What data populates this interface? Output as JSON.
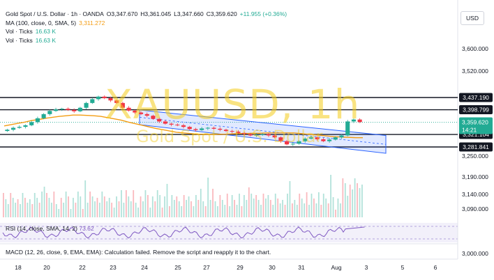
{
  "header": {
    "symbol_line": "Gold Spot / U.S. Dollar · 1h · OANDA",
    "open": "O3,347.670",
    "high": "H3,361.045",
    "low": "L3,347.660",
    "close": "C3,359.620",
    "change": "+11.955 (+0.36%)",
    "ma_label": "MA (100, close, 0, SMA, 5)",
    "ma_value": "3,311.272",
    "vol_label_1": "Vol · Ticks",
    "vol_value_1": "16.63 K",
    "vol_label_2": "Vol · Ticks",
    "vol_value_2": "16.63 K",
    "currency": "USD"
  },
  "watermark": {
    "title": "XAUUSD, 1h",
    "subtitle": "Gold Spot / U.S. Dollar"
  },
  "price_axis": {
    "ticks": [
      "3,600.000",
      "3,520.000",
      "3,250.000",
      "3,190.000",
      "3,140.000",
      "3,090.000",
      "3,000.000"
    ],
    "levels": [
      {
        "label": "3,437.190",
        "value": 3437.19
      },
      {
        "label": "3,398.799",
        "value": 3398.799
      },
      {
        "label": "3,321.104",
        "value": 3321.104
      },
      {
        "label": "3,281.841",
        "value": 3281.841
      }
    ],
    "current": {
      "label": "3,359.620",
      "timer": "14:21",
      "value": 3359.62
    }
  },
  "time_axis": {
    "labels": [
      "18",
      "20",
      "22",
      "23",
      "24",
      "25",
      "27",
      "29",
      "30",
      "31",
      "Aug",
      "3",
      "5",
      "6"
    ]
  },
  "indicators": {
    "rsi_label": "RSI (14, close, SMA, 14, 2)",
    "rsi_value": "73.62",
    "macd_text": "MACD (12, 26, close, 9, EMA, EMA): Calculation failed. Remove the script and reapply it to the chart."
  },
  "colors": {
    "up": "#22ab94",
    "down": "#f23645",
    "ma": "#f39c12",
    "channel": "#2962ff",
    "rsi": "#7e57c2"
  },
  "chart_data": {
    "type": "candlestick",
    "series": [
      {
        "name": "XAUUSD",
        "close": [
          3336,
          3342,
          3345,
          3350,
          3360,
          3372,
          3385,
          3395,
          3400,
          3402,
          3398,
          3394,
          3405,
          3420,
          3432,
          3440,
          3435,
          3428,
          3420,
          3405,
          3396,
          3390,
          3385,
          3380,
          3370,
          3362,
          3355,
          3352,
          3350,
          3345,
          3338,
          3335,
          3340,
          3342,
          3339,
          3336,
          3332,
          3330,
          3326,
          3322,
          3318,
          3320,
          3322,
          3318,
          3312,
          3300,
          3290,
          3292,
          3300,
          3308,
          3312,
          3306,
          3300,
          3305,
          3312,
          3318,
          3362,
          3368,
          3360
        ]
      }
    ],
    "ma_100": [
      3348,
      3352,
      3356,
      3360,
      3365,
      3368,
      3372,
      3375,
      3378,
      3380,
      3382,
      3382,
      3381,
      3380,
      3378,
      3374,
      3370,
      3366,
      3360,
      3355,
      3350,
      3345,
      3340,
      3336,
      3332,
      3328,
      3326,
      3324,
      3322,
      3322,
      3321,
      3322,
      3322,
      3323,
      3324,
      3324,
      3325,
      3325,
      3326,
      3326,
      3326,
      3326,
      3326,
      3324,
      3322,
      3320,
      3318,
      3316,
      3314,
      3313,
      3312,
      3311,
      3311
    ],
    "channel": {
      "upper": [
        3398,
        3318
      ],
      "lower": [
        3352,
        3262
      ]
    },
    "ylim": [
      3230,
      3460
    ],
    "grid": true
  }
}
